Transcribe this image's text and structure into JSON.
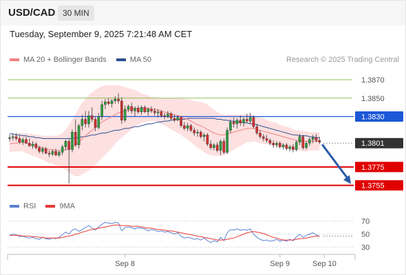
{
  "header": {
    "symbol": "USD/CAD",
    "timeframe": "30 MIN"
  },
  "datetime": "Tuesday, September 9, 2025 7:21:48 AM CET",
  "legend": {
    "ma20_label": "MA 20 + Bollinger Bands",
    "ma50_label": "MA 50"
  },
  "credit": "Research © 2025 Trading Central",
  "rsi_legend": {
    "rsi_label": "RSI",
    "ma_label": "9MA"
  },
  "colors": {
    "ma20": "#f08080",
    "ma50": "#2a4d8f",
    "bollinger_fill": "#fde0e0",
    "candle_up": "#2e9e3f",
    "candle_down": "#d32f2f",
    "support": "#e00000",
    "resistance_key": "#1c57d8",
    "resistance_minor": "#6bb02a",
    "last_price_bg": "#333333",
    "rsi_line": "#5b82d1",
    "rsi_ma": "#e53935",
    "arrow": "#2a5aa8"
  },
  "chart_data": [
    {
      "type": "candlestick",
      "title": "",
      "y_range": [
        1.3745,
        1.3885
      ],
      "x_labels": [
        "Sep 8",
        "Sep 9",
        "Sep 10"
      ],
      "price_levels": [
        {
          "value": 1.387,
          "label": "1.3870",
          "kind": "resistance-minor"
        },
        {
          "value": 1.385,
          "label": "1.3850",
          "kind": "resistance-minor"
        },
        {
          "value": 1.383,
          "label": "1.3830",
          "kind": "resistance-key"
        },
        {
          "value": 1.3801,
          "label": "1.3801",
          "kind": "last-price"
        },
        {
          "value": 1.3775,
          "label": "1.3775",
          "kind": "support"
        },
        {
          "value": 1.3755,
          "label": "1.3755",
          "kind": "support"
        }
      ],
      "candles": [
        [
          1.3806,
          1.381,
          1.3803,
          1.3807
        ],
        [
          1.3807,
          1.3811,
          1.3804,
          1.3808
        ],
        [
          1.3808,
          1.3812,
          1.3804,
          1.3806
        ],
        [
          1.3806,
          1.3809,
          1.38,
          1.3802
        ],
        [
          1.3802,
          1.3807,
          1.3799,
          1.3805
        ],
        [
          1.3805,
          1.3808,
          1.38,
          1.3801
        ],
        [
          1.3801,
          1.3806,
          1.3797,
          1.3798
        ],
        [
          1.3798,
          1.3803,
          1.3795,
          1.38
        ],
        [
          1.38,
          1.3802,
          1.3794,
          1.3796
        ],
        [
          1.3796,
          1.3798,
          1.379,
          1.3792
        ],
        [
          1.3792,
          1.3797,
          1.3789,
          1.3795
        ],
        [
          1.3795,
          1.3797,
          1.3789,
          1.379
        ],
        [
          1.379,
          1.3793,
          1.3786,
          1.3789
        ],
        [
          1.3789,
          1.3794,
          1.3787,
          1.3792
        ],
        [
          1.3792,
          1.3795,
          1.3787,
          1.3788
        ],
        [
          1.3788,
          1.3793,
          1.3786,
          1.3791
        ],
        [
          1.3791,
          1.3799,
          1.3788,
          1.3797
        ],
        [
          1.3797,
          1.3805,
          1.3793,
          1.3803
        ],
        [
          1.3803,
          1.3806,
          1.3757,
          1.3794
        ],
        [
          1.3794,
          1.3816,
          1.3791,
          1.3813
        ],
        [
          1.3813,
          1.3827,
          1.3797,
          1.3799
        ],
        [
          1.3799,
          1.3822,
          1.3795,
          1.382
        ],
        [
          1.382,
          1.3832,
          1.3815,
          1.3827
        ],
        [
          1.3827,
          1.3836,
          1.3818,
          1.3822
        ],
        [
          1.3822,
          1.3836,
          1.3818,
          1.3831
        ],
        [
          1.3831,
          1.384,
          1.3824,
          1.3827
        ],
        [
          1.3827,
          1.383,
          1.3814,
          1.3818
        ],
        [
          1.3818,
          1.3834,
          1.3816,
          1.383
        ],
        [
          1.383,
          1.3847,
          1.3826,
          1.3843
        ],
        [
          1.3843,
          1.3849,
          1.3838,
          1.3846
        ],
        [
          1.3846,
          1.385,
          1.3842,
          1.3844
        ],
        [
          1.3844,
          1.3849,
          1.384,
          1.3847
        ],
        [
          1.3847,
          1.3852,
          1.3844,
          1.3849
        ],
        [
          1.3849,
          1.3855,
          1.3844,
          1.3847
        ],
        [
          1.3847,
          1.3851,
          1.3822,
          1.3826
        ],
        [
          1.3826,
          1.3842,
          1.3824,
          1.3838
        ],
        [
          1.3838,
          1.3843,
          1.3835,
          1.3841
        ],
        [
          1.3841,
          1.3845,
          1.3833,
          1.3836
        ],
        [
          1.3836,
          1.3841,
          1.383,
          1.3839
        ],
        [
          1.3839,
          1.3842,
          1.3833,
          1.3835
        ],
        [
          1.3835,
          1.3842,
          1.3832,
          1.384
        ],
        [
          1.384,
          1.3842,
          1.3834,
          1.3835
        ],
        [
          1.3835,
          1.384,
          1.3831,
          1.3838
        ],
        [
          1.3838,
          1.3841,
          1.3834,
          1.3836
        ],
        [
          1.3836,
          1.3839,
          1.3831,
          1.3834
        ],
        [
          1.3834,
          1.3838,
          1.3829,
          1.3835
        ],
        [
          1.3835,
          1.3837,
          1.3829,
          1.3831
        ],
        [
          1.3831,
          1.3834,
          1.3827,
          1.383
        ],
        [
          1.383,
          1.3836,
          1.3828,
          1.3833
        ],
        [
          1.3833,
          1.3835,
          1.3826,
          1.3828
        ],
        [
          1.3828,
          1.3832,
          1.3824,
          1.3826
        ],
        [
          1.3826,
          1.3831,
          1.3825,
          1.3829
        ],
        [
          1.3829,
          1.3831,
          1.3818,
          1.382
        ],
        [
          1.382,
          1.3824,
          1.3815,
          1.3817
        ],
        [
          1.3817,
          1.3823,
          1.3814,
          1.382
        ],
        [
          1.382,
          1.3822,
          1.3813,
          1.3815
        ],
        [
          1.3815,
          1.3818,
          1.3809,
          1.3812
        ],
        [
          1.3812,
          1.3816,
          1.3808,
          1.3813
        ],
        [
          1.3813,
          1.3815,
          1.3806,
          1.3808
        ],
        [
          1.3808,
          1.3812,
          1.3803,
          1.381
        ],
        [
          1.381,
          1.3812,
          1.3798,
          1.38
        ],
        [
          1.38,
          1.3804,
          1.3794,
          1.3796
        ],
        [
          1.3796,
          1.3801,
          1.3793,
          1.3799
        ],
        [
          1.3799,
          1.3802,
          1.3791,
          1.3793
        ],
        [
          1.3793,
          1.3805,
          1.3788,
          1.3803
        ],
        [
          1.3803,
          1.3806,
          1.3789,
          1.3791
        ],
        [
          1.3791,
          1.3818,
          1.3789,
          1.3815
        ],
        [
          1.3815,
          1.3827,
          1.3812,
          1.3824
        ],
        [
          1.3824,
          1.3829,
          1.3818,
          1.3822
        ],
        [
          1.3822,
          1.3828,
          1.3817,
          1.3826
        ],
        [
          1.3826,
          1.3831,
          1.382,
          1.3823
        ],
        [
          1.3823,
          1.3829,
          1.3819,
          1.3827
        ],
        [
          1.3827,
          1.3833,
          1.3823,
          1.3825
        ],
        [
          1.3825,
          1.3834,
          1.3822,
          1.3829
        ],
        [
          1.3829,
          1.3831,
          1.3817,
          1.3819
        ],
        [
          1.3819,
          1.3822,
          1.381,
          1.3812
        ],
        [
          1.3812,
          1.3815,
          1.3806,
          1.3808
        ],
        [
          1.3808,
          1.3811,
          1.3803,
          1.3806
        ],
        [
          1.3806,
          1.381,
          1.3802,
          1.3804
        ],
        [
          1.3804,
          1.3806,
          1.3799,
          1.3801
        ],
        [
          1.3801,
          1.3804,
          1.3796,
          1.3799
        ],
        [
          1.3799,
          1.3803,
          1.3796,
          1.3801
        ],
        [
          1.3801,
          1.3803,
          1.3795,
          1.3797
        ],
        [
          1.3797,
          1.3801,
          1.3794,
          1.3799
        ],
        [
          1.3799,
          1.3801,
          1.3793,
          1.3795
        ],
        [
          1.3795,
          1.3799,
          1.3792,
          1.3797
        ],
        [
          1.3797,
          1.38,
          1.3791,
          1.3794
        ],
        [
          1.3794,
          1.3804,
          1.3792,
          1.3802
        ],
        [
          1.3802,
          1.3811,
          1.3799,
          1.3808
        ],
        [
          1.3808,
          1.381,
          1.3794,
          1.3796
        ],
        [
          1.3796,
          1.3803,
          1.3794,
          1.3801
        ],
        [
          1.3801,
          1.3807,
          1.3798,
          1.3805
        ],
        [
          1.3805,
          1.381,
          1.3801,
          1.3807
        ],
        [
          1.3807,
          1.3811,
          1.3802,
          1.3804
        ],
        [
          1.3804,
          1.3808,
          1.38,
          1.3802
        ]
      ],
      "ma20": [
        1.38,
        1.3801,
        1.3801,
        1.3802,
        1.3802,
        1.3801,
        1.38,
        1.3799,
        1.3798,
        1.3797,
        1.3796,
        1.3795,
        1.3794,
        1.3794,
        1.3793,
        1.3793,
        1.3793,
        1.3794,
        1.3795,
        1.3797,
        1.3799,
        1.3802,
        1.3806,
        1.3809,
        1.3812,
        1.3815,
        1.3818,
        1.3821,
        1.3824,
        1.3826,
        1.3828,
        1.383,
        1.3832,
        1.3834,
        1.3835,
        1.3836,
        1.3837,
        1.3838,
        1.3839,
        1.3839,
        1.3839,
        1.3839,
        1.3839,
        1.3838,
        1.3838,
        1.3837,
        1.3836,
        1.3835,
        1.3834,
        1.3833,
        1.3832,
        1.3831,
        1.383,
        1.3828,
        1.3827,
        1.3825,
        1.3823,
        1.3821,
        1.382,
        1.3818,
        1.3816,
        1.3814,
        1.3812,
        1.3811,
        1.381,
        1.381,
        1.3811,
        1.3812,
        1.3813,
        1.3814,
        1.3815,
        1.3816,
        1.3817,
        1.3817,
        1.3817,
        1.3816,
        1.3815,
        1.3814,
        1.3813,
        1.3812,
        1.3811,
        1.381,
        1.3809,
        1.3808,
        1.3807,
        1.3806,
        1.3805,
        1.3804,
        1.3804,
        1.3803,
        1.3803,
        1.3803,
        1.3803,
        1.3803,
        1.3803
      ],
      "ma50": [
        1.3811,
        1.3811,
        1.381,
        1.381,
        1.3809,
        1.3809,
        1.3808,
        1.3808,
        1.3807,
        1.3807,
        1.3806,
        1.3806,
        1.3806,
        1.3806,
        1.3806,
        1.3806,
        1.3806,
        1.3806,
        1.3806,
        1.3806,
        1.3807,
        1.3807,
        1.3808,
        1.3808,
        1.3809,
        1.381,
        1.381,
        1.3811,
        1.3812,
        1.3812,
        1.3813,
        1.3814,
        1.3815,
        1.3815,
        1.3816,
        1.3817,
        1.3817,
        1.3818,
        1.3819,
        1.3819,
        1.382,
        1.3821,
        1.3822,
        1.3822,
        1.3823,
        1.3824,
        1.3824,
        1.3825,
        1.3825,
        1.3826,
        1.3826,
        1.3827,
        1.3827,
        1.3827,
        1.3828,
        1.3828,
        1.3828,
        1.3828,
        1.3828,
        1.3828,
        1.3828,
        1.3828,
        1.3828,
        1.3827,
        1.3827,
        1.3826,
        1.3826,
        1.3825,
        1.3825,
        1.3824,
        1.3824,
        1.3823,
        1.3823,
        1.3822,
        1.3822,
        1.3821,
        1.382,
        1.3819,
        1.3818,
        1.3817,
        1.3816,
        1.3815,
        1.3814,
        1.3813,
        1.3812,
        1.3811,
        1.381,
        1.381,
        1.3809,
        1.3809,
        1.3809,
        1.3808,
        1.3808,
        1.3807,
        1.3807
      ],
      "bollinger_width": [
        0.0009,
        0.0009,
        0.0009,
        0.001,
        0.001,
        0.0011,
        0.0011,
        0.0012,
        0.0012,
        0.0013,
        0.0013,
        0.0014,
        0.0015,
        0.0015,
        0.0016,
        0.0017,
        0.0019,
        0.0022,
        0.0026,
        0.003,
        0.0034,
        0.0037,
        0.0039,
        0.004,
        0.0041,
        0.0041,
        0.0041,
        0.004,
        0.0039,
        0.0038,
        0.0036,
        0.0034,
        0.0032,
        0.003,
        0.0028,
        0.0026,
        0.0024,
        0.0022,
        0.002,
        0.0018,
        0.0016,
        0.0015,
        0.0014,
        0.0013,
        0.0013,
        0.0013,
        0.0014,
        0.0015,
        0.0016,
        0.0017,
        0.0018,
        0.0019,
        0.002,
        0.0021,
        0.0022,
        0.0023,
        0.0024,
        0.0025,
        0.0026,
        0.0027,
        0.0027,
        0.0026,
        0.0025,
        0.0024,
        0.0023,
        0.0022,
        0.0021,
        0.002,
        0.0019,
        0.0018,
        0.0017,
        0.0016,
        0.0015,
        0.0015,
        0.0014,
        0.0014,
        0.0014,
        0.0014,
        0.0013,
        0.0013,
        0.0013,
        0.0013,
        0.0012,
        0.0012,
        0.0012,
        0.0012,
        0.0011,
        0.0011,
        0.0011,
        0.0011,
        0.0011,
        0.001,
        0.001,
        0.001,
        0.001
      ],
      "projection": {
        "from": 1.3801,
        "to": 1.3755
      }
    },
    {
      "type": "line",
      "title": "",
      "y_range": [
        20,
        80
      ],
      "y_ticks": [
        70,
        50,
        30
      ],
      "series": [
        {
          "name": "RSI",
          "values": [
            48,
            50,
            49,
            46,
            47,
            45,
            44,
            45,
            43,
            42,
            45,
            43,
            42,
            44,
            43,
            45,
            49,
            53,
            50,
            56,
            58,
            54,
            57,
            60,
            63,
            59,
            56,
            61,
            65,
            68,
            67,
            66,
            68,
            67,
            55,
            60,
            61,
            60,
            58,
            60,
            59,
            58,
            55,
            57,
            56,
            54,
            55,
            53,
            54,
            52,
            50,
            52,
            47,
            44,
            45,
            44,
            42,
            43,
            41,
            44,
            40,
            37,
            40,
            38,
            45,
            40,
            52,
            57,
            56,
            58,
            56,
            57,
            56,
            58,
            50,
            45,
            42,
            40,
            41,
            39,
            40,
            42,
            39,
            41,
            39,
            42,
            40,
            46,
            50,
            45,
            48,
            50,
            52,
            49,
            47
          ]
        },
        {
          "name": "9MA",
          "values": [
            48,
            48,
            48,
            48,
            47,
            47,
            47,
            46,
            46,
            45,
            45,
            44,
            44,
            44,
            44,
            44,
            45,
            46,
            47,
            48,
            50,
            51,
            53,
            54,
            56,
            57,
            58,
            59,
            60,
            61,
            62,
            63,
            64,
            64,
            63,
            63,
            63,
            62,
            62,
            62,
            61,
            60,
            59,
            59,
            58,
            57,
            57,
            56,
            55,
            55,
            54,
            53,
            52,
            51,
            50,
            49,
            48,
            47,
            46,
            45,
            44,
            43,
            42,
            41,
            41,
            41,
            42,
            43,
            44,
            46,
            48,
            50,
            52,
            53,
            54,
            53,
            52,
            51,
            49,
            47,
            45,
            44,
            42,
            41,
            41,
            41,
            41,
            42,
            43,
            43,
            44,
            45,
            46,
            47,
            47
          ]
        }
      ]
    }
  ],
  "rsi_ticks": [
    "70",
    "50",
    "30"
  ],
  "x_axis": [
    "Sep 8",
    "Sep 9",
    "Sep 10"
  ]
}
